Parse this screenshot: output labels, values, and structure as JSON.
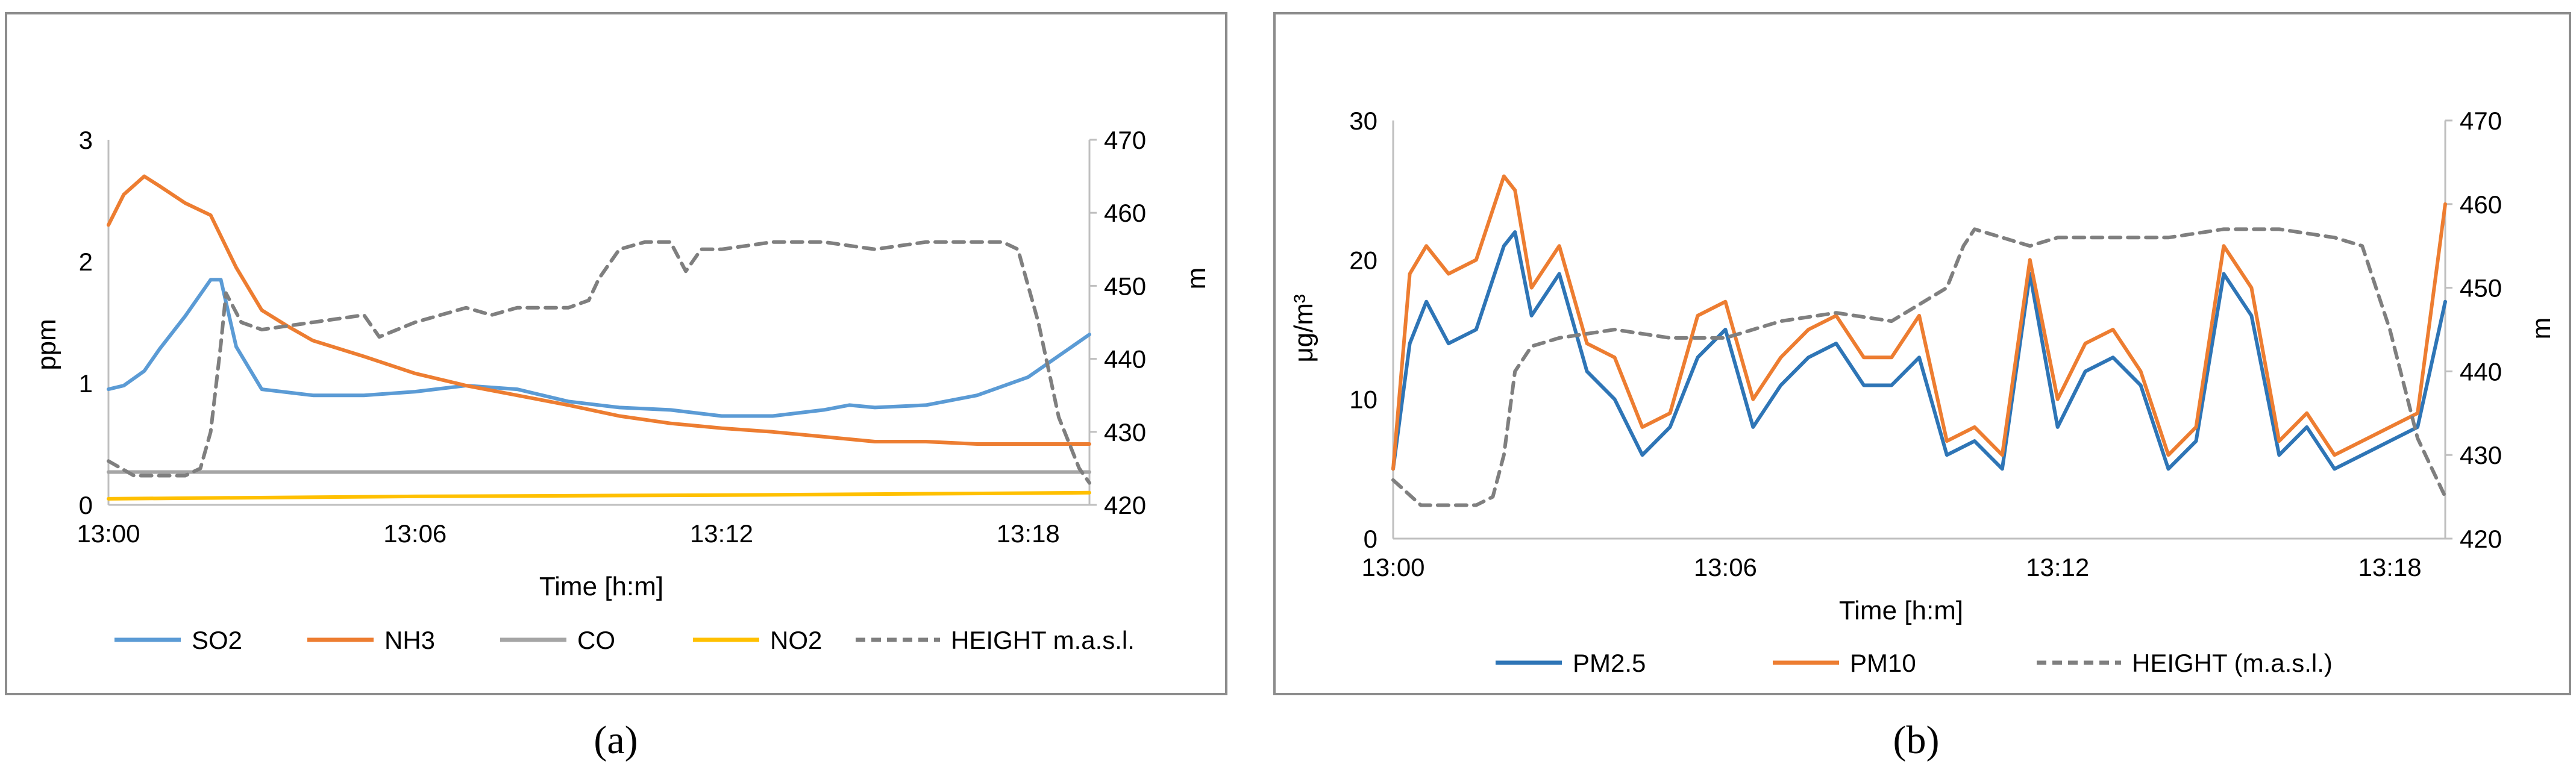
{
  "colors": {
    "so2": "#5B9BD5",
    "nh3": "#ED7D31",
    "co": "#A5A5A5",
    "no2": "#FFC000",
    "height": "#7F7F7F",
    "pm25": "#2E75B6",
    "pm10": "#ED7D31"
  },
  "chart_data": [
    {
      "type": "line",
      "caption": "(a)",
      "title": "",
      "xlabel": "Time [h:m]",
      "ylabel": "ppm",
      "y2label": "m",
      "xticks": [
        "13:00",
        "13:06",
        "13:12",
        "13:18"
      ],
      "xlim": [
        0,
        19.2
      ],
      "ylim": [
        0,
        3
      ],
      "yticks": [
        "0",
        "1",
        "2",
        "3"
      ],
      "y2lim": [
        420,
        470
      ],
      "y2ticks": [
        "420",
        "430",
        "440",
        "450",
        "460",
        "470"
      ],
      "legend": [
        "SO2",
        "NH3",
        "CO",
        "NO2",
        "HEIGHT m.a.s.l."
      ],
      "series": [
        {
          "name": "SO2",
          "axis": "left",
          "x": [
            0,
            0.3,
            0.7,
            1.0,
            1.5,
            2.0,
            2.2,
            2.5,
            3.0,
            4.0,
            5.0,
            6.0,
            7.0,
            8.0,
            9.0,
            10.0,
            11.0,
            12.0,
            13.0,
            14.0,
            14.5,
            15.0,
            16.0,
            17.0,
            18.0,
            19.2
          ],
          "y": [
            0.95,
            0.98,
            1.1,
            1.28,
            1.55,
            1.85,
            1.85,
            1.3,
            0.95,
            0.9,
            0.9,
            0.93,
            0.98,
            0.95,
            0.85,
            0.8,
            0.78,
            0.73,
            0.73,
            0.78,
            0.82,
            0.8,
            0.82,
            0.9,
            1.05,
            1.4
          ]
        },
        {
          "name": "NH3",
          "axis": "left",
          "x": [
            0,
            0.3,
            0.7,
            1.0,
            1.5,
            2.0,
            2.5,
            3.0,
            3.5,
            4.0,
            5.0,
            6.0,
            7.0,
            8.0,
            9.0,
            10.0,
            11.0,
            12.0,
            13.0,
            14.0,
            15.0,
            16.0,
            17.0,
            18.0,
            19.2
          ],
          "y": [
            2.3,
            2.55,
            2.7,
            2.62,
            2.48,
            2.38,
            1.95,
            1.6,
            1.47,
            1.35,
            1.22,
            1.08,
            0.98,
            0.9,
            0.82,
            0.73,
            0.67,
            0.63,
            0.6,
            0.56,
            0.52,
            0.52,
            0.5,
            0.5,
            0.5
          ]
        },
        {
          "name": "CO",
          "axis": "left",
          "x": [
            0,
            19.2
          ],
          "y": [
            0.27,
            0.27
          ]
        },
        {
          "name": "NO2",
          "axis": "left",
          "x": [
            0,
            6.0,
            12.0,
            19.2
          ],
          "y": [
            0.05,
            0.07,
            0.08,
            0.1
          ]
        },
        {
          "name": "HEIGHT m.a.s.l.",
          "axis": "right",
          "dash": true,
          "x": [
            0,
            0.5,
            1.0,
            1.5,
            1.8,
            2.0,
            2.2,
            2.3,
            2.6,
            3.0,
            4.0,
            5.0,
            5.3,
            6.0,
            7.0,
            7.5,
            8.0,
            9.0,
            9.4,
            9.6,
            10.0,
            10.5,
            11.0,
            11.3,
            11.6,
            12.0,
            13.0,
            14.0,
            15.0,
            16.0,
            17.0,
            17.5,
            17.8,
            18.2,
            18.6,
            19.0,
            19.2
          ],
          "y": [
            426,
            424,
            424,
            424,
            425,
            430,
            442,
            449,
            445,
            444,
            445,
            446,
            443,
            445,
            447,
            446,
            447,
            447,
            448,
            451,
            455,
            456,
            456,
            452,
            455,
            455,
            456,
            456,
            455,
            456,
            456,
            456,
            455,
            445,
            432,
            425,
            423
          ]
        }
      ]
    },
    {
      "type": "line",
      "caption": "(b)",
      "title": "",
      "xlabel": "Time [h:m]",
      "ylabel": "μg/m³",
      "y2label": "m",
      "xticks": [
        "13:00",
        "13:06",
        "13:12",
        "13:18"
      ],
      "xlim": [
        0,
        19.0
      ],
      "ylim": [
        0,
        30
      ],
      "yticks": [
        "0",
        "10",
        "20",
        "30"
      ],
      "y2lim": [
        420,
        470
      ],
      "y2ticks": [
        "420",
        "430",
        "440",
        "450",
        "460",
        "470"
      ],
      "legend": [
        "PM2.5",
        "PM10",
        "HEIGHT (m.a.s.l.)"
      ],
      "series": [
        {
          "name": "PM2.5",
          "axis": "left",
          "x": [
            0,
            0.3,
            0.6,
            1.0,
            1.5,
            2.0,
            2.2,
            2.5,
            3.0,
            3.5,
            4.0,
            4.5,
            5.0,
            5.5,
            6.0,
            6.5,
            7.0,
            7.5,
            8.0,
            8.5,
            9.0,
            9.5,
            10.0,
            10.5,
            11.0,
            11.5,
            12.0,
            12.5,
            13.0,
            13.5,
            14.0,
            14.5,
            15.0,
            15.5,
            16.0,
            16.5,
            17.0,
            17.5,
            18.0,
            18.5,
            19.0
          ],
          "y": [
            5,
            14,
            17,
            14,
            15,
            21,
            22,
            16,
            19,
            12,
            10,
            6,
            8,
            13,
            15,
            8,
            11,
            13,
            14,
            11,
            11,
            13,
            6,
            7,
            5,
            19,
            8,
            12,
            13,
            11,
            5,
            7,
            19,
            16,
            6,
            8,
            5,
            6,
            7,
            8,
            17
          ]
        },
        {
          "name": "PM10",
          "axis": "left",
          "x": [
            0,
            0.3,
            0.6,
            1.0,
            1.5,
            2.0,
            2.2,
            2.5,
            3.0,
            3.5,
            4.0,
            4.5,
            5.0,
            5.5,
            6.0,
            6.5,
            7.0,
            7.5,
            8.0,
            8.5,
            9.0,
            9.5,
            10.0,
            10.5,
            11.0,
            11.5,
            12.0,
            12.5,
            13.0,
            13.5,
            14.0,
            14.5,
            15.0,
            15.5,
            16.0,
            16.5,
            17.0,
            17.5,
            18.0,
            18.5,
            19.0
          ],
          "y": [
            5,
            19,
            21,
            19,
            20,
            26,
            25,
            18,
            21,
            14,
            13,
            8,
            9,
            16,
            17,
            10,
            13,
            15,
            16,
            13,
            13,
            16,
            7,
            8,
            6,
            20,
            10,
            14,
            15,
            12,
            6,
            8,
            21,
            18,
            7,
            9,
            6,
            7,
            8,
            9,
            24
          ]
        },
        {
          "name": "HEIGHT (m.a.s.l.)",
          "axis": "right",
          "dash": true,
          "x": [
            0,
            0.5,
            1.0,
            1.5,
            1.8,
            2.0,
            2.2,
            2.5,
            3.0,
            4.0,
            5.0,
            6.0,
            7.0,
            8.0,
            9.0,
            9.5,
            10.0,
            10.3,
            10.5,
            11.0,
            11.5,
            12.0,
            13.0,
            14.0,
            15.0,
            16.0,
            17.0,
            17.5,
            18.0,
            18.5,
            19.0
          ],
          "y": [
            427,
            424,
            424,
            424,
            425,
            430,
            440,
            443,
            444,
            445,
            444,
            444,
            446,
            447,
            446,
            448,
            450,
            455,
            457,
            456,
            455,
            456,
            456,
            456,
            457,
            457,
            456,
            455,
            445,
            432,
            425
          ]
        }
      ]
    }
  ]
}
